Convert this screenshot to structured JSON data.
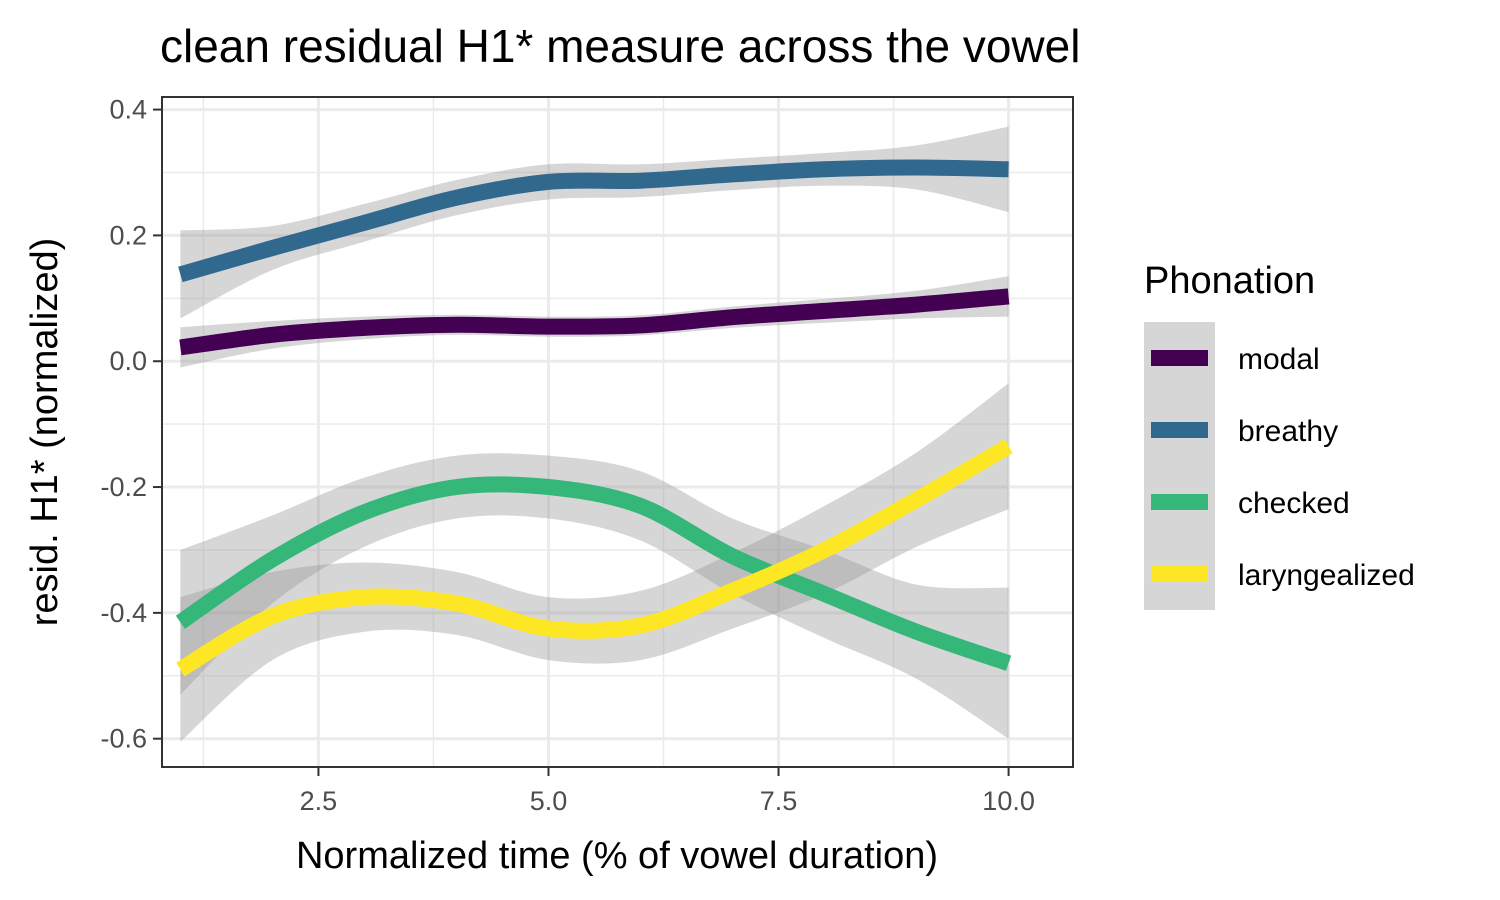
{
  "chart_data": {
    "type": "line",
    "title": "clean residual H1* measure across the vowel",
    "xlabel": "Normalized time (% of vowel duration)",
    "ylabel": "resid. H1* (normalized)",
    "xlim": [
      0.8,
      10.7
    ],
    "ylim": [
      -0.645,
      0.42
    ],
    "x_ticks": [
      2.5,
      5.0,
      7.5,
      10.0
    ],
    "x_tick_labels": [
      "2.5",
      "5.0",
      "7.5",
      "10.0"
    ],
    "y_ticks": [
      -0.6,
      -0.4,
      -0.2,
      0.0,
      0.2,
      0.4
    ],
    "y_tick_labels": [
      "-0.6",
      "-0.4",
      "-0.2",
      "0.0",
      "0.2",
      "0.4"
    ],
    "grid": true,
    "legend": {
      "title": "Phonation",
      "position": "right"
    },
    "series": [
      {
        "name": "modal",
        "color": "#440154",
        "x": [
          1,
          2,
          3,
          4,
          5,
          6,
          7,
          8,
          9,
          10
        ],
        "y": [
          0.022,
          0.042,
          0.053,
          0.058,
          0.055,
          0.057,
          0.07,
          0.08,
          0.09,
          0.103
        ],
        "band": [
          0.032,
          0.022,
          0.018,
          0.016,
          0.016,
          0.016,
          0.017,
          0.019,
          0.022,
          0.032
        ]
      },
      {
        "name": "breathy",
        "color": "#31688e",
        "x": [
          1,
          2,
          3,
          4,
          5,
          6,
          7,
          8,
          9,
          10
        ],
        "y": [
          0.138,
          0.18,
          0.22,
          0.26,
          0.285,
          0.287,
          0.297,
          0.305,
          0.308,
          0.305
        ],
        "band": [
          0.07,
          0.035,
          0.03,
          0.028,
          0.028,
          0.026,
          0.025,
          0.026,
          0.035,
          0.068
        ]
      },
      {
        "name": "checked",
        "color": "#35b779",
        "x": [
          1,
          2,
          3,
          4,
          5,
          6,
          7,
          8,
          9,
          10
        ],
        "y": [
          -0.415,
          -0.315,
          -0.24,
          -0.2,
          -0.2,
          -0.23,
          -0.31,
          -0.37,
          -0.43,
          -0.48
        ],
        "band": [
          0.115,
          0.07,
          0.055,
          0.05,
          0.05,
          0.055,
          0.06,
          0.07,
          0.075,
          0.12
        ]
      },
      {
        "name": "laryngealized",
        "color": "#fde725",
        "x": [
          1,
          2,
          3,
          4,
          5,
          6,
          7,
          8,
          9,
          10
        ],
        "y": [
          -0.49,
          -0.405,
          -0.375,
          -0.385,
          -0.425,
          -0.42,
          -0.365,
          -0.3,
          -0.22,
          -0.135
        ],
        "band": [
          0.115,
          0.07,
          0.055,
          0.05,
          0.05,
          0.055,
          0.06,
          0.07,
          0.075,
          0.1
        ]
      }
    ]
  }
}
